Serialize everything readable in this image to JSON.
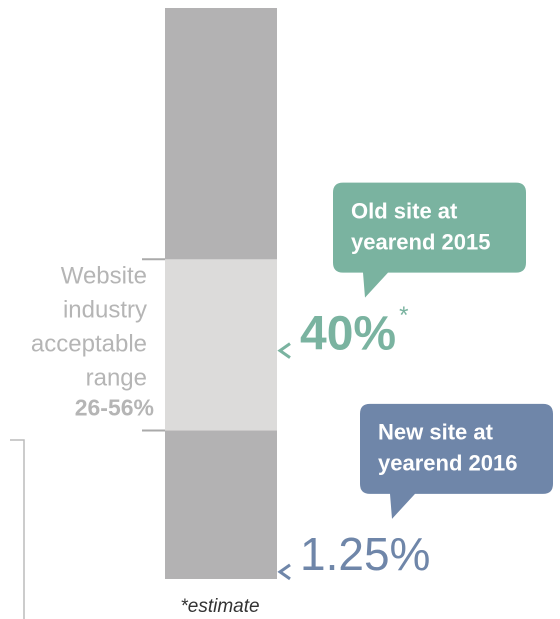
{
  "chart_data": {
    "type": "range-gauge",
    "ylim": [
      0,
      100
    ],
    "bar_color": "#b3b2b3",
    "range": [
      26,
      56
    ],
    "range_color": "#dcdbda",
    "range_text": [
      "Website",
      "industry",
      "acceptable",
      "range"
    ],
    "range_label": "26-56%",
    "markers": [
      {
        "value": 40,
        "value_label": "40%",
        "note": "*",
        "color": "#7ab3a0",
        "callout": [
          "Old site at",
          "yearend 2015"
        ]
      },
      {
        "value": 1.25,
        "value_label": "1.25%",
        "color": "#6f86a9",
        "callout": [
          "New site at",
          "yearend 2016"
        ]
      }
    ],
    "footnote": "*estimate"
  }
}
